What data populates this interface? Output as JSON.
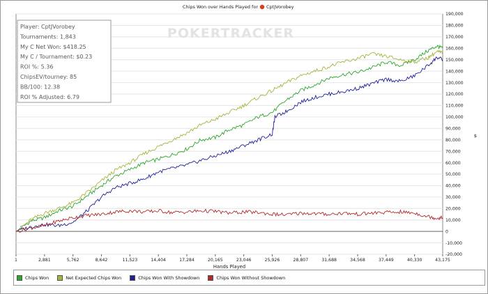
{
  "chart_data": {
    "type": "line",
    "title": "Chips Won over Hands Played for",
    "player": "CptJVorobey",
    "xlabel": "Hands Played",
    "ylabel": "$",
    "xlim": [
      1,
      43175
    ],
    "ylim": [
      -20000,
      190000
    ],
    "x_ticks": [
      "1",
      "2,881",
      "5,762",
      "8,642",
      "11,523",
      "14,404",
      "17,284",
      "20,165",
      "23,046",
      "25,926",
      "28,807",
      "31,688",
      "34,568",
      "37,449",
      "40,330",
      "43,175"
    ],
    "y_ticks": [
      -20000,
      -10000,
      0,
      10000,
      20000,
      30000,
      40000,
      50000,
      60000,
      70000,
      80000,
      90000,
      100000,
      110000,
      120000,
      130000,
      140000,
      150000,
      160000,
      170000,
      180000,
      190000
    ],
    "y_tick_labels": [
      "-20,000",
      "-10,000",
      "0",
      "10,000",
      "20,000",
      "30,000",
      "40,000",
      "50,000",
      "60,000",
      "70,000",
      "80,000",
      "90,000",
      "100,000",
      "110,000",
      "120,000",
      "130,000",
      "140,000",
      "150,000",
      "160,000",
      "170,000",
      "180,000",
      "190,000"
    ],
    "grid": true,
    "watermark": "POKERTRACKER",
    "series": [
      {
        "name": "Chips Won",
        "color": "#2ca52c",
        "x": [
          1,
          1500,
          2881,
          4300,
          5762,
          7200,
          8642,
          10000,
          11523,
          13000,
          14404,
          15800,
          17284,
          18700,
          20165,
          21600,
          23046,
          24500,
          25926,
          27400,
          28807,
          30200,
          31688,
          33100,
          34568,
          36000,
          37449,
          38900,
          40330,
          41700,
          42600,
          43175
        ],
        "y": [
          0,
          9000,
          12000,
          18000,
          22000,
          31000,
          40000,
          48000,
          54000,
          60000,
          63000,
          67000,
          72000,
          80000,
          82000,
          89000,
          93000,
          100000,
          104000,
          115000,
          123000,
          128000,
          134000,
          137000,
          139000,
          143000,
          148000,
          145000,
          150000,
          158000,
          162000,
          160000
        ]
      },
      {
        "name": "Net Expected Chips Won",
        "color": "#a6b33a",
        "x": [
          1,
          1500,
          2881,
          4300,
          5762,
          7200,
          8642,
          10000,
          11523,
          13000,
          14404,
          15800,
          17284,
          18700,
          20165,
          21600,
          23046,
          24500,
          25926,
          27400,
          28807,
          30200,
          31688,
          33100,
          34568,
          36000,
          37449,
          38900,
          40330,
          41700,
          42600,
          43175
        ],
        "y": [
          0,
          10000,
          16000,
          20000,
          25000,
          34000,
          44000,
          53000,
          60000,
          68000,
          74000,
          80000,
          86000,
          93000,
          98000,
          104000,
          110000,
          117000,
          123000,
          130000,
          136000,
          140000,
          144000,
          148000,
          151000,
          155000,
          153000,
          150000,
          148000,
          152000,
          157000,
          156000
        ]
      },
      {
        "name": "Chips Won With Showdown",
        "color": "#1f1f96",
        "x": [
          1,
          1500,
          2881,
          4300,
          5762,
          7200,
          8642,
          10000,
          11523,
          13000,
          14404,
          15800,
          17284,
          18700,
          20165,
          21600,
          23046,
          24500,
          25926,
          26200,
          27400,
          28807,
          30200,
          31688,
          33100,
          34568,
          36000,
          37449,
          38900,
          40330,
          41700,
          42600,
          43175
        ],
        "y": [
          0,
          4000,
          6000,
          5000,
          8000,
          18000,
          30000,
          38000,
          42000,
          46000,
          52000,
          55000,
          58000,
          62000,
          66000,
          70000,
          75000,
          80000,
          85000,
          100000,
          105000,
          113000,
          117000,
          120000,
          122000,
          125000,
          129000,
          133000,
          131000,
          136000,
          145000,
          152000,
          150000
        ]
      },
      {
        "name": "Chips Won Without Showdown",
        "color": "#b02a2a",
        "x": [
          1,
          1500,
          2881,
          4300,
          5762,
          7200,
          8642,
          10000,
          11523,
          13000,
          14404,
          15800,
          17284,
          18700,
          20165,
          21600,
          23046,
          24500,
          25926,
          27400,
          28807,
          30200,
          31688,
          33100,
          34568,
          36000,
          37449,
          38900,
          40330,
          41700,
          42600,
          43175
        ],
        "y": [
          0,
          3000,
          5000,
          9000,
          12000,
          14000,
          15000,
          17000,
          18000,
          17000,
          18000,
          16500,
          17000,
          18000,
          17500,
          16000,
          17000,
          16500,
          15000,
          14500,
          16000,
          15500,
          15000,
          16000,
          15000,
          16000,
          16500,
          17000,
          16000,
          13000,
          11500,
          12000
        ]
      }
    ],
    "legend_position": "bottom",
    "stats_box": [
      "Player: CptJVorobey",
      "Tournaments: 1,843",
      "My C Net Won: $418.25",
      "My C / Tournament: $0.23",
      "ROI %: 5.36",
      "ChipsEV/tourney: 85",
      "BB/100: 12.38",
      "ROI % Adjusted: 6.79"
    ]
  }
}
